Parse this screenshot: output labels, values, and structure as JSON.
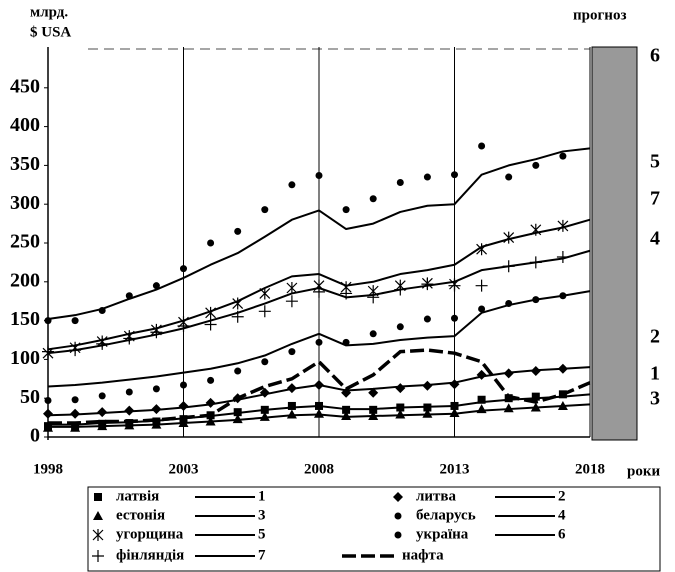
{
  "chart_data": {
    "type": "line",
    "y_label_line1": "млрд.",
    "y_label_line2": "$ USA",
    "x_label": "роки",
    "forecast_label": "прогноз",
    "x": [
      1998,
      1999,
      2000,
      2001,
      2002,
      2003,
      2004,
      2005,
      2006,
      2007,
      2008,
      2009,
      2010,
      2011,
      2012,
      2013,
      2014,
      2015,
      2016,
      2017,
      2018
    ],
    "xlim": [
      1998,
      2018
    ],
    "xticks": [
      1998,
      2003,
      2008,
      2013,
      2018
    ],
    "ylim": [
      0,
      500
    ],
    "yticks": [
      0,
      50,
      100,
      150,
      200,
      250,
      300,
      350,
      400,
      450
    ],
    "grid": true,
    "series": [
      {
        "name": "латвія",
        "marker": "square",
        "color": "#000",
        "line_label": "1",
        "values": [
          14,
          14,
          17,
          18,
          20,
          23,
          28,
          32,
          35,
          40,
          40,
          35,
          35,
          38,
          38,
          40,
          48,
          50,
          52,
          55,
          null
        ],
        "trend": [
          16,
          16,
          18,
          19,
          21,
          24,
          27,
          31,
          35,
          38,
          40,
          36,
          36,
          38,
          39,
          40,
          45,
          48,
          50,
          52,
          55
        ]
      },
      {
        "name": "литва",
        "marker": "diamond",
        "color": "#000",
        "line_label": "2",
        "values": [
          30,
          30,
          32,
          34,
          36,
          40,
          44,
          50,
          57,
          63,
          67,
          57,
          57,
          63,
          66,
          68,
          80,
          82,
          85,
          88,
          null
        ],
        "trend": [
          28,
          29,
          31,
          33,
          35,
          38,
          42,
          48,
          55,
          62,
          67,
          60,
          62,
          65,
          67,
          70,
          78,
          83,
          86,
          88,
          90
        ]
      },
      {
        "name": "естонія",
        "marker": "triangle",
        "color": "#000",
        "line_label": "3",
        "values": [
          12,
          12,
          14,
          15,
          16,
          18,
          20,
          23,
          26,
          29,
          30,
          27,
          27,
          29,
          30,
          31,
          36,
          37,
          38,
          40,
          null
        ],
        "trend": [
          13,
          13,
          14,
          15,
          16,
          18,
          20,
          22,
          25,
          28,
          29,
          26,
          27,
          28,
          29,
          30,
          34,
          36,
          38,
          40,
          42
        ]
      },
      {
        "name": "беларусь",
        "marker": "dot",
        "color": "#000",
        "line_label": "4",
        "values": [
          47,
          48,
          53,
          58,
          62,
          67,
          73,
          85,
          97,
          110,
          122,
          122,
          133,
          142,
          152,
          153,
          165,
          172,
          177,
          182,
          null
        ],
        "trend": [
          65,
          67,
          70,
          74,
          78,
          83,
          88,
          95,
          105,
          120,
          133,
          118,
          120,
          125,
          128,
          130,
          160,
          170,
          177,
          182,
          188
        ]
      },
      {
        "name": "угорщина",
        "marker": "asterisk",
        "color": "#000",
        "line_label": "5",
        "values": [
          108,
          115,
          123,
          130,
          138,
          148,
          160,
          172,
          185,
          192,
          195,
          193,
          188,
          195,
          198,
          197,
          242,
          257,
          267,
          272,
          null
        ],
        "trend": [
          113,
          118,
          125,
          133,
          140,
          150,
          162,
          175,
          192,
          207,
          210,
          195,
          200,
          210,
          215,
          222,
          245,
          255,
          263,
          270,
          280
        ]
      },
      {
        "name": "україна",
        "marker": "dot",
        "color": "#000",
        "line_label": "6",
        "values": [
          150,
          150,
          163,
          182,
          195,
          217,
          250,
          265,
          293,
          325,
          337,
          293,
          307,
          328,
          335,
          338,
          375,
          335,
          350,
          362,
          null
        ],
        "trend": [
          152,
          157,
          165,
          178,
          190,
          205,
          222,
          237,
          258,
          280,
          292,
          268,
          275,
          290,
          298,
          300,
          338,
          350,
          358,
          368,
          372
        ]
      },
      {
        "name": "фінляндія",
        "marker": "plus",
        "color": "#000",
        "line_label": "7",
        "values": [
          110,
          112,
          120,
          127,
          135,
          143,
          145,
          155,
          162,
          175,
          187,
          185,
          180,
          190,
          197,
          195,
          195,
          220,
          225,
          232,
          null
        ],
        "trend": [
          108,
          112,
          118,
          125,
          132,
          140,
          150,
          160,
          172,
          185,
          192,
          180,
          183,
          190,
          195,
          200,
          215,
          220,
          225,
          230,
          240
        ]
      }
    ],
    "oil": {
      "name": "нафта",
      "color": "#000",
      "values": [
        18,
        18,
        20,
        20,
        22,
        25,
        28,
        50,
        65,
        75,
        97,
        62,
        80,
        110,
        112,
        108,
        97,
        52,
        45,
        55,
        70
      ]
    }
  }
}
